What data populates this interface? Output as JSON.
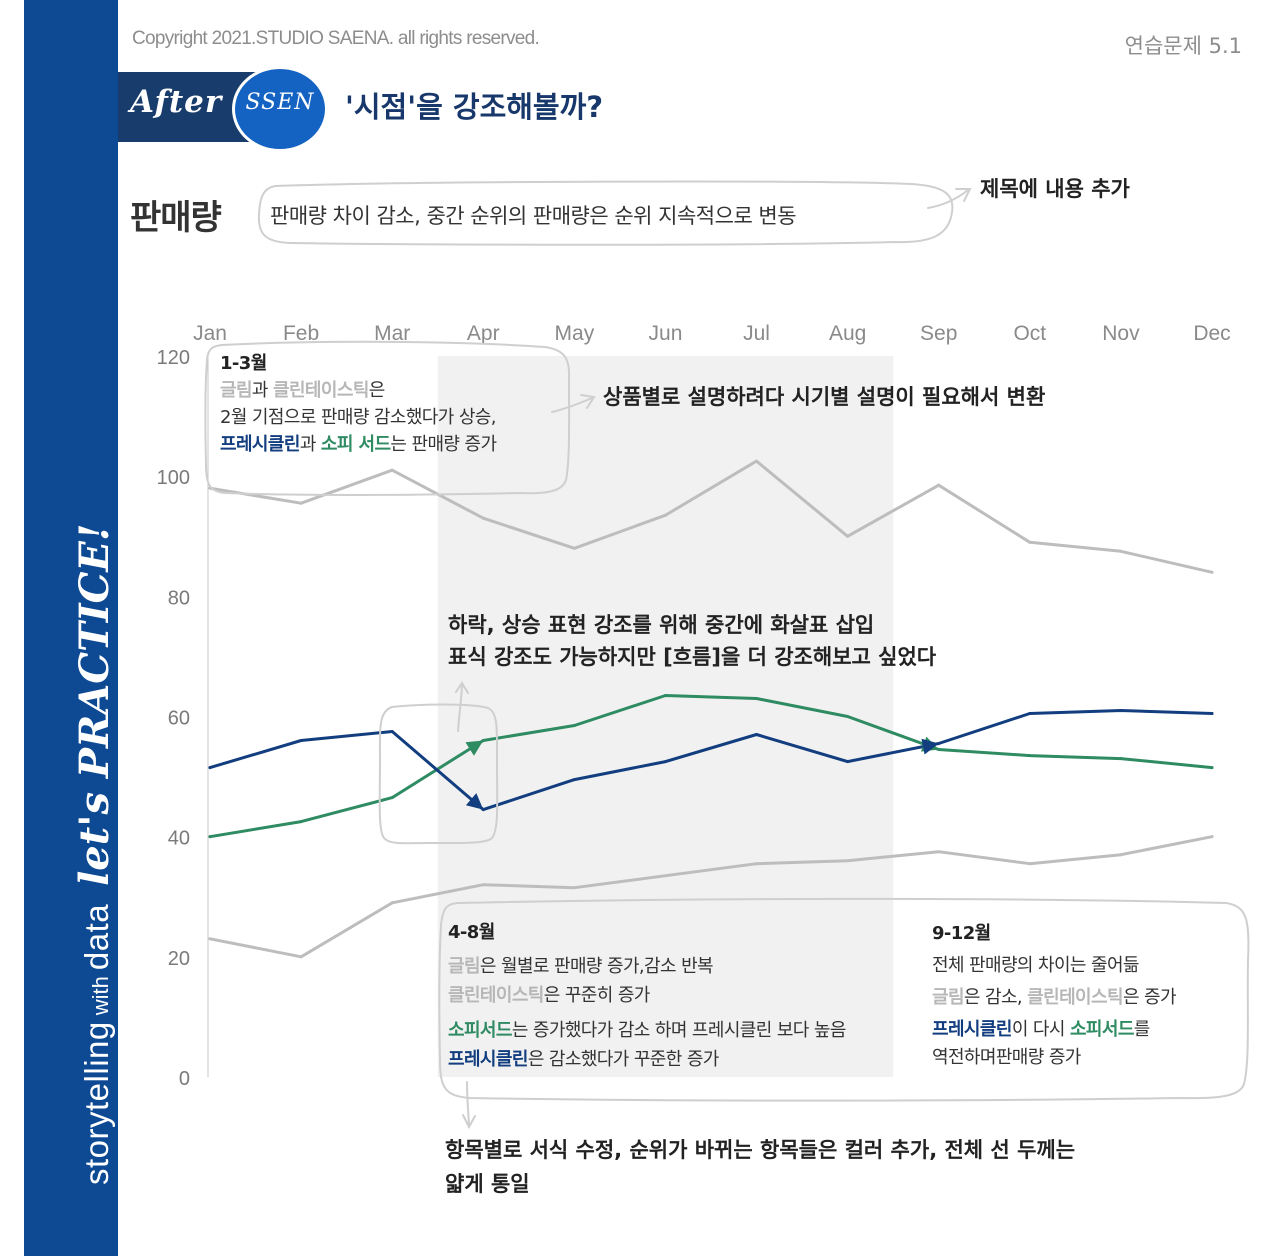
{
  "header": {
    "copyright": "Copyright 2021.STUDIO SAENA. all rights reserved.",
    "exercise": "연습문제 5.1",
    "after": "After",
    "ssen": "SSEN",
    "question": "'시점'을 강조해볼까?"
  },
  "sidebar": {
    "text_a": "storytelling",
    "text_b": "with",
    "text_c": "data",
    "practice": "let's PRACTICE!"
  },
  "title": {
    "main": "판매량",
    "sub": "판매량 차이 감소, 중간 순위의 판매량은 순위 지속적으로 변동"
  },
  "notes": {
    "title_note": "제목에 내용 추가",
    "period_note": "상품별로 설명하려다 시기별 설명이 필요해서 변환",
    "arrow_note_1": "하락, 상승 표현 강조를 위해 중간에 화살표 삽입",
    "arrow_note_2": "표식 강조도 가능하지만 [흐름]을 더 강조해보고 싶었다",
    "format_note_1": "항목별로 서식 수정, 순위가 바뀌는 항목들은 컬러 추가, 전체 선 두께는",
    "format_note_2": "얇게 통일"
  },
  "annotations": {
    "q1": {
      "heading": "1-3월",
      "grim": "글림",
      "and1": "과 ",
      "clean": "클린테이스틱",
      "eun": "은",
      "line2": "2월 기점으로 판매량 감소했다가 상승,",
      "presh": "프레시클린",
      "and2": "과 ",
      "sofi": "소피 서드",
      "tail": "는 판매량 증가"
    },
    "q2": {
      "heading": "4-8월",
      "grim": "글림",
      "l1": "은 월별로 판매량 증가,감소 반복",
      "clean": "클린테이스틱",
      "l2": "은 꾸준히 증가",
      "sofi": "소피서드",
      "l3": "는 증가했다가 감소 하며 프레시클린 보다 높음",
      "presh": "프레시클린",
      "l4": "은 감소했다가 꾸준한 증가"
    },
    "q3": {
      "heading": "9-12월",
      "l1": "전체 판매량의 차이는 줄어듦",
      "grim": "글림",
      "l2a": "은 감소, ",
      "clean": "클린테이스틱",
      "l2b": "은 증가",
      "presh": "프레시클린",
      "l3a": "이 다시 ",
      "sofi": "소피서드",
      "l3b": "를",
      "l4": "역전하며판매량 증가"
    }
  },
  "colors": {
    "grey": "#bdbdbd",
    "blue": "#123e80",
    "green": "#2e8b62",
    "highlight": "#f1f1f1",
    "sidebar": "#0d4a93"
  },
  "chart_data": {
    "type": "line",
    "categories": [
      "Jan",
      "Feb",
      "Mar",
      "Apr",
      "May",
      "Jun",
      "Jul",
      "Aug",
      "Sep",
      "Oct",
      "Nov",
      "Dec"
    ],
    "ylim": [
      0,
      120
    ],
    "yticks": [
      0,
      20,
      40,
      60,
      80,
      100,
      120
    ],
    "highlight_range": [
      "Apr",
      "Aug"
    ],
    "series": [
      {
        "key": "grim",
        "color": "#bdbdbd",
        "values": [
          98,
          95.5,
          101,
          93,
          88,
          93.5,
          102.5,
          90,
          98.5,
          89,
          87.5,
          84
        ]
      },
      {
        "key": "clean",
        "color": "#bdbdbd",
        "values": [
          23,
          20,
          29,
          32,
          31.5,
          33.5,
          35.5,
          36,
          37.5,
          35.5,
          37,
          40
        ]
      },
      {
        "key": "sofi",
        "color": "#2e8b62",
        "values": [
          40,
          42.5,
          46.5,
          56,
          58.5,
          63.5,
          63,
          60,
          54.5,
          53.5,
          53,
          51.5
        ]
      },
      {
        "key": "presh",
        "color": "#123e80",
        "values": [
          51.5,
          56,
          57.5,
          44.5,
          49.5,
          52.5,
          57,
          52.5,
          55.5,
          60.5,
          61,
          60.5
        ]
      }
    ]
  }
}
